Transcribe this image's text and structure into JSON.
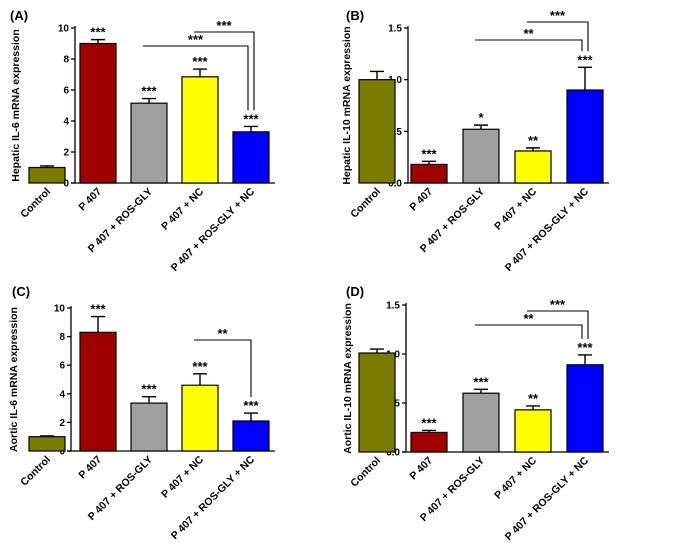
{
  "figure": {
    "categories": [
      "Control",
      "P 407",
      "P 407 + ROS-GLY",
      "P 407 + NC",
      "P 407 + ROS-GLY + NC"
    ],
    "bar_colors": [
      "#7b7b00",
      "#a00000",
      "#a0a0a0",
      "#ffff00",
      "#0000ff"
    ]
  },
  "chart_data": [
    {
      "type": "bar",
      "panel": "(A)",
      "ylabel": "Hepatic IL-6 mRNA expression",
      "xlabel": "",
      "ylim": [
        0,
        10
      ],
      "yticks": [
        0,
        2,
        4,
        6,
        8,
        10
      ],
      "ytick_labels": [
        "0",
        "2",
        "4",
        "6",
        "8",
        "10"
      ],
      "categories": [
        "Control",
        "P 407",
        "P 407 + ROS-GLY",
        "P 407 + NC",
        "P 407 + ROS-GLY + NC"
      ],
      "values": [
        1.0,
        9.0,
        5.15,
        6.85,
        3.3
      ],
      "errors": [
        0.1,
        0.25,
        0.3,
        0.5,
        0.35
      ],
      "significance": [
        "",
        "***",
        "***",
        "***",
        "***"
      ],
      "brackets": [
        {
          "from": 2,
          "to": 4,
          "label": "***"
        },
        {
          "from": 3,
          "to": 4,
          "label": "***"
        }
      ]
    },
    {
      "type": "bar",
      "panel": "(B)",
      "ylabel": "Hepatic IL-10 mRNA expression",
      "xlabel": "",
      "ylim": [
        0,
        1.5
      ],
      "yticks": [
        0,
        0.5,
        1.0,
        1.5
      ],
      "ytick_labels": [
        "0.0",
        "0.5",
        "1.0",
        "1.5"
      ],
      "categories": [
        "Control",
        "P 407",
        "P 407 + ROS-GLY",
        "P 407 + NC",
        "P 407 + ROS-GLY + NC"
      ],
      "values": [
        1.0,
        0.18,
        0.52,
        0.31,
        0.9
      ],
      "errors": [
        0.08,
        0.03,
        0.04,
        0.03,
        0.22
      ],
      "significance": [
        "",
        "***",
        "*",
        "**",
        "***"
      ],
      "brackets": [
        {
          "from": 2,
          "to": 4,
          "label": "**"
        },
        {
          "from": 3,
          "to": 4,
          "label": "***"
        }
      ]
    },
    {
      "type": "bar",
      "panel": "(C)",
      "ylabel": "Aortic IL-6 mRNA expression",
      "xlabel": "",
      "ylim": [
        0,
        10
      ],
      "yticks": [
        0,
        2,
        4,
        6,
        8,
        10
      ],
      "ytick_labels": [
        "0",
        "2",
        "4",
        "6",
        "8",
        "10"
      ],
      "categories": [
        "Control",
        "P 407",
        "P 407 + ROS-GLY",
        "P 407 + NC",
        "P 407 + ROS-GLY + NC"
      ],
      "values": [
        1.0,
        8.3,
        3.35,
        4.6,
        2.1
      ],
      "errors": [
        0.05,
        1.1,
        0.45,
        0.8,
        0.55
      ],
      "significance": [
        "",
        "***",
        "***",
        "***",
        "***"
      ],
      "brackets": [
        {
          "from": 3,
          "to": 4,
          "label": "**"
        }
      ]
    },
    {
      "type": "bar",
      "panel": "(D)",
      "ylabel": "Aortic IL-10 mRNA expression",
      "xlabel": "",
      "ylim": [
        0,
        1.5
      ],
      "yticks": [
        0,
        0.5,
        1.0,
        1.5
      ],
      "ytick_labels": [
        "0.0",
        "0.5",
        "1.0",
        "1.5"
      ],
      "categories": [
        "Control",
        "P 407",
        "P 407 + ROS-GLY",
        "P 407 + NC",
        "P 407 + ROS-GLY + NC"
      ],
      "values": [
        1.01,
        0.2,
        0.6,
        0.43,
        0.89
      ],
      "errors": [
        0.04,
        0.02,
        0.04,
        0.04,
        0.1
      ],
      "significance": [
        "",
        "***",
        "***",
        "**",
        "***"
      ],
      "brackets": [
        {
          "from": 2,
          "to": 4,
          "label": "**"
        },
        {
          "from": 3,
          "to": 4,
          "label": "***"
        }
      ]
    }
  ]
}
